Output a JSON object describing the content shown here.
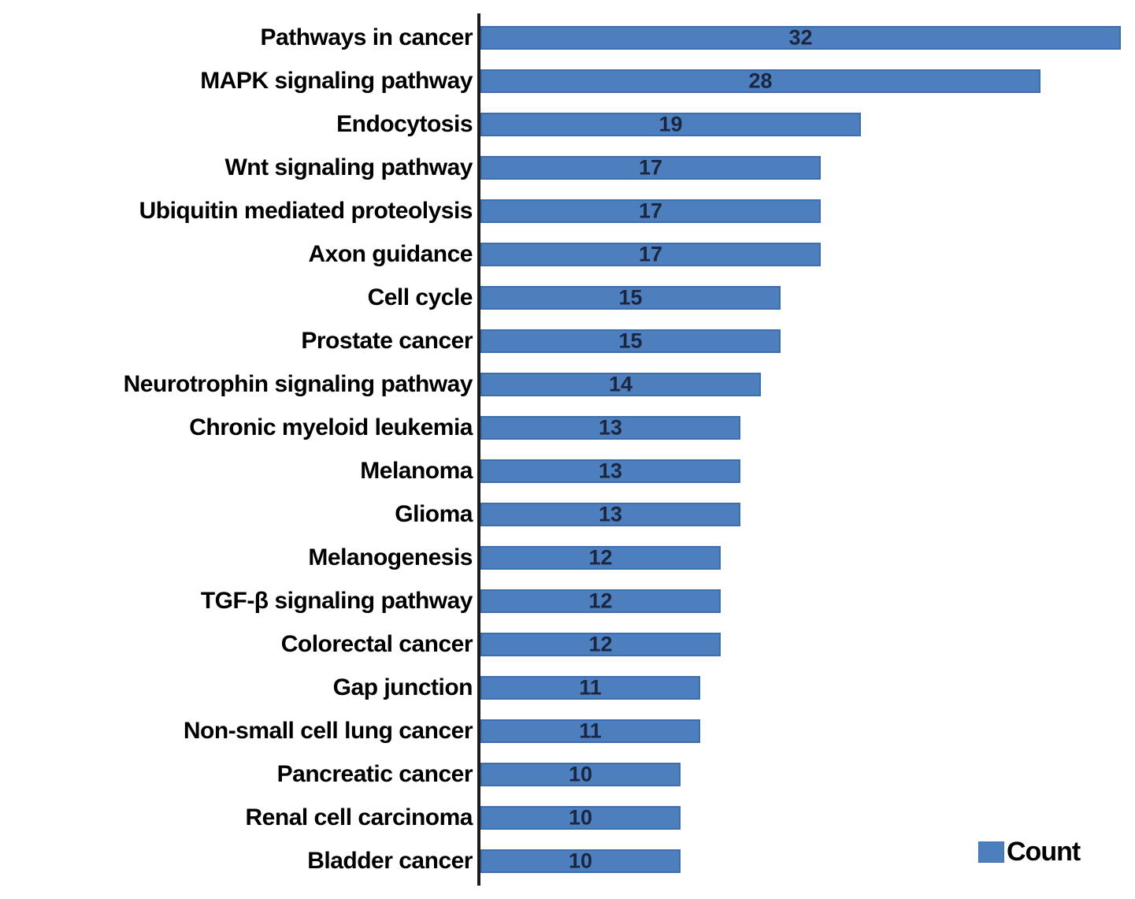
{
  "chart_data": {
    "type": "bar",
    "orientation": "horizontal",
    "title": "",
    "xlabel": "",
    "ylabel": "",
    "grid": false,
    "xlim": [
      0,
      32.7
    ],
    "categories": [
      "Pathways in cancer",
      "MAPK signaling pathway",
      "Endocytosis",
      "Wnt signaling pathway",
      "Ubiquitin mediated proteolysis",
      "Axon guidance",
      "Cell cycle",
      "Prostate cancer",
      "Neurotrophin signaling pathway",
      "Chronic myeloid leukemia",
      "Melanoma",
      "Glioma",
      "Melanogenesis",
      "TGF-β signaling pathway",
      "Colorectal cancer",
      "Gap junction",
      "Non-small cell lung cancer",
      "Pancreatic cancer",
      "Renal cell carcinoma",
      "Bladder cancer"
    ],
    "values": [
      32,
      28,
      19,
      17,
      17,
      17,
      15,
      15,
      14,
      13,
      13,
      13,
      12,
      12,
      12,
      11,
      11,
      10,
      10,
      10
    ],
    "value_labels_shown": true,
    "bar_color": "#4d7fbe",
    "bar_border_color": "#3d6ea9",
    "value_label_color": "#1b2740",
    "axis_line_color": "#1b1b1b",
    "legend": {
      "label": "Count",
      "position": "bottom-right",
      "swatch_color": "#4d7fbe"
    }
  }
}
